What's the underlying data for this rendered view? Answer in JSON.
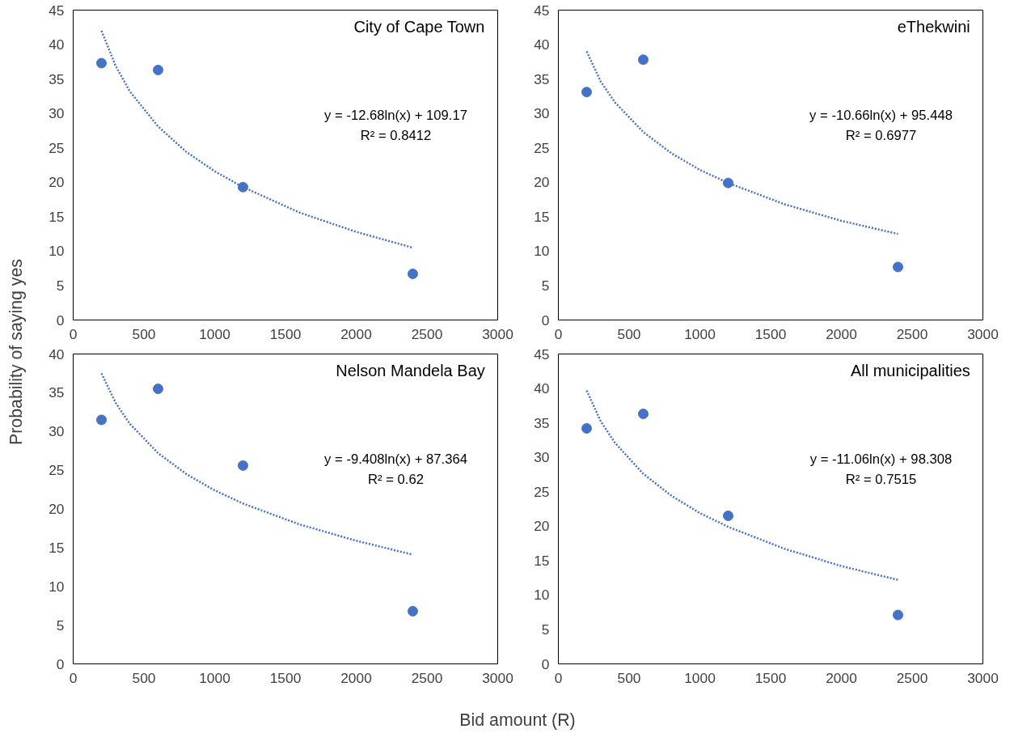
{
  "chart_data": [
    {
      "type": "scatter",
      "title": "City of Cape Town",
      "ylabel": "Probability of saying yes",
      "xlim": [
        0,
        3000
      ],
      "xticks": [
        0,
        500,
        1000,
        1500,
        2000,
        2500,
        3000
      ],
      "ylim": [
        0,
        45
      ],
      "yticks": [
        0,
        5,
        10,
        15,
        20,
        25,
        30,
        35,
        40,
        45
      ],
      "grid": false,
      "marker": "circle",
      "x": [
        200,
        600,
        1200,
        2400
      ],
      "annotations": [
        "y = -12.68ln(x) + 109.17",
        "R² = 0.8412"
      ],
      "series": [
        {
          "color": "#4472c4",
          "values": [
            37.3,
            36.3,
            19.3,
            6.7
          ]
        },
        {
          "type": "line",
          "color": "#4472c4",
          "line_style": "dotted",
          "marker": "none",
          "x": [
            200,
            300,
            400,
            600,
            800,
            1000,
            1200,
            1600,
            2000,
            2400
          ],
          "values": [
            42.0,
            36.9,
            33.2,
            28.1,
            24.4,
            21.6,
            19.3,
            15.6,
            12.8,
            10.5
          ]
        }
      ]
    },
    {
      "type": "scatter",
      "title": "eThekwini",
      "xlim": [
        0,
        3000
      ],
      "xticks": [
        0,
        500,
        1000,
        1500,
        2000,
        2500,
        3000
      ],
      "ylim": [
        0,
        45
      ],
      "yticks": [
        0,
        5,
        10,
        15,
        20,
        25,
        30,
        35,
        40,
        45
      ],
      "grid": false,
      "marker": "circle",
      "x": [
        200,
        600,
        1200,
        2400
      ],
      "annotations": [
        "y = -10.66ln(x) + 95.448",
        "R² = 0.6977"
      ],
      "series": [
        {
          "color": "#4472c4",
          "values": [
            33.1,
            37.8,
            19.9,
            7.7
          ]
        },
        {
          "type": "line",
          "color": "#4472c4",
          "line_style": "dotted",
          "marker": "none",
          "x": [
            200,
            300,
            400,
            600,
            800,
            1000,
            1200,
            1600,
            2000,
            2400
          ],
          "values": [
            39.0,
            34.6,
            31.6,
            27.3,
            24.2,
            21.8,
            19.9,
            16.8,
            14.4,
            12.5
          ]
        }
      ]
    },
    {
      "type": "scatter",
      "title": "Nelson Mandela Bay",
      "xlabel": "Bid amount (R)",
      "xlim": [
        0,
        3000
      ],
      "xticks": [
        0,
        500,
        1000,
        1500,
        2000,
        2500,
        3000
      ],
      "ylim": [
        0,
        40
      ],
      "yticks": [
        0,
        5,
        10,
        15,
        20,
        25,
        30,
        35,
        40
      ],
      "grid": false,
      "marker": "circle",
      "x": [
        200,
        600,
        1200,
        2400
      ],
      "annotations": [
        "y = -9.408ln(x) + 87.364",
        "R² = 0.62"
      ],
      "series": [
        {
          "color": "#4472c4",
          "values": [
            31.5,
            35.5,
            25.6,
            6.8
          ]
        },
        {
          "type": "line",
          "color": "#4472c4",
          "line_style": "dotted",
          "marker": "none",
          "x": [
            200,
            300,
            400,
            600,
            800,
            1000,
            1200,
            1600,
            2000,
            2400
          ],
          "values": [
            37.5,
            33.7,
            31.0,
            27.2,
            24.5,
            22.4,
            20.7,
            18.0,
            15.9,
            14.1
          ]
        }
      ]
    },
    {
      "type": "scatter",
      "title": "All municipalities",
      "xlim": [
        0,
        3000
      ],
      "xticks": [
        0,
        500,
        1000,
        1500,
        2000,
        2500,
        3000
      ],
      "ylim": [
        0,
        45
      ],
      "yticks": [
        0,
        5,
        10,
        15,
        20,
        25,
        30,
        35,
        40,
        45
      ],
      "grid": false,
      "marker": "circle",
      "x": [
        200,
        600,
        1200,
        2400
      ],
      "annotations": [
        "y = -11.06ln(x) + 98.308",
        "R² = 0.7515"
      ],
      "series": [
        {
          "color": "#4472c4",
          "values": [
            34.2,
            36.3,
            21.5,
            7.1
          ]
        },
        {
          "type": "line",
          "color": "#4472c4",
          "line_style": "dotted",
          "marker": "none",
          "x": [
            200,
            300,
            400,
            600,
            800,
            1000,
            1200,
            1600,
            2000,
            2400
          ],
          "values": [
            39.7,
            35.2,
            32.1,
            27.6,
            24.4,
            21.9,
            19.9,
            16.7,
            14.2,
            12.2
          ]
        }
      ]
    }
  ]
}
